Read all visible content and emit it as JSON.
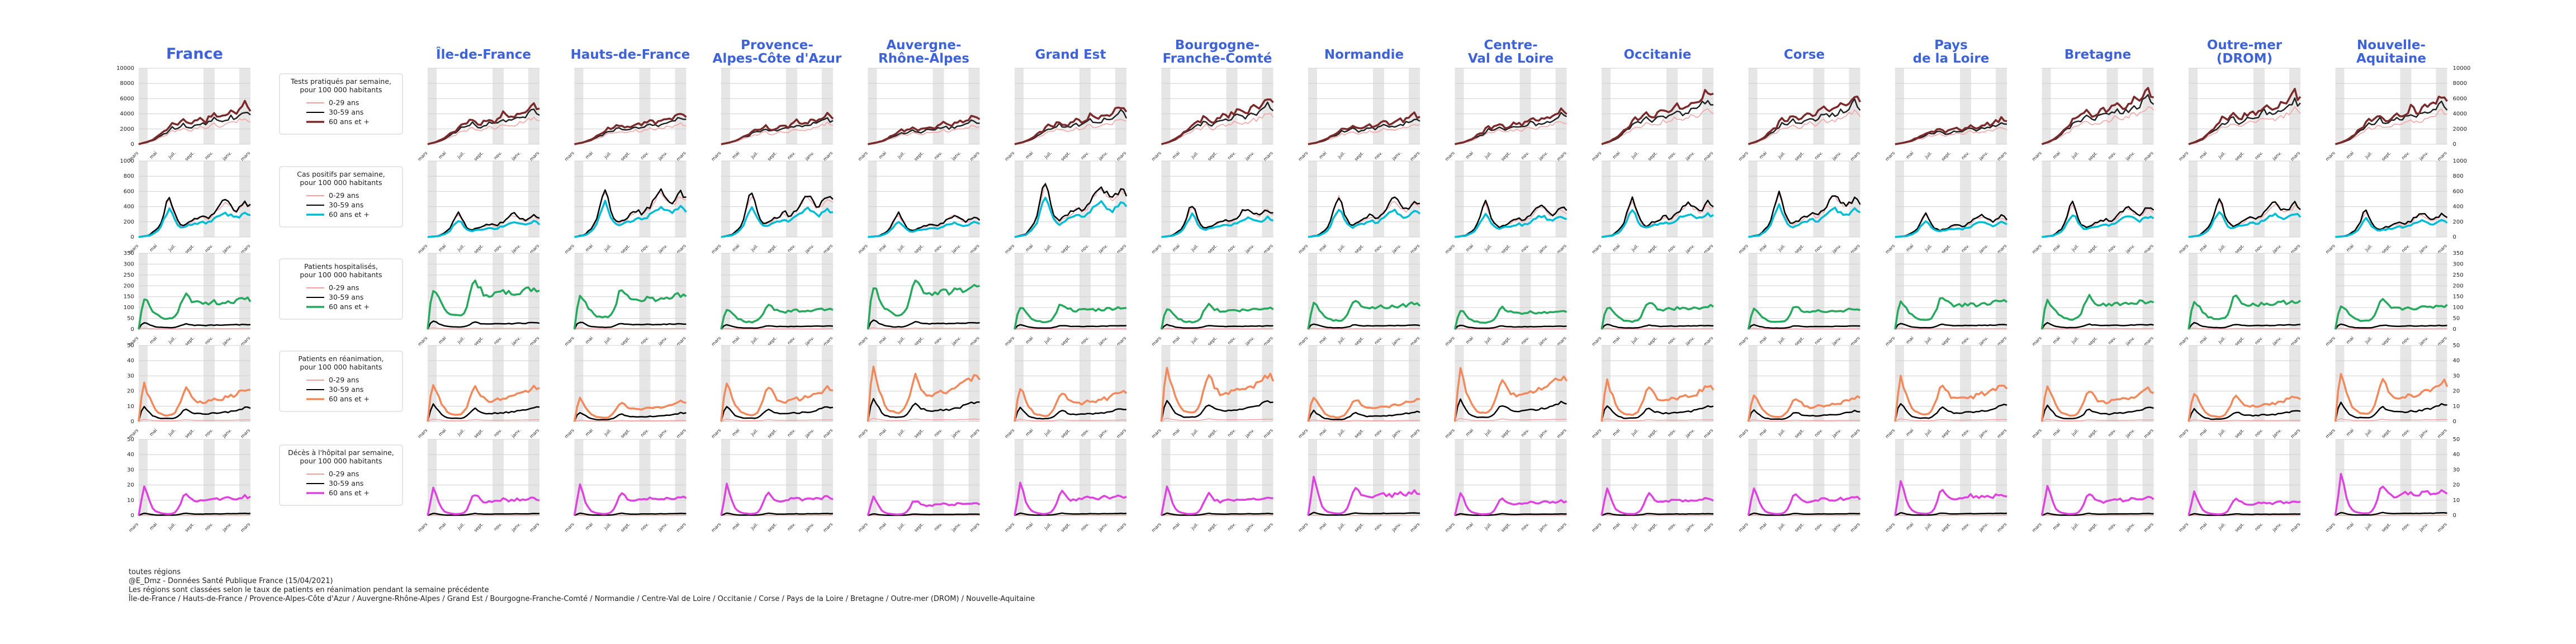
{
  "chart_data": {
    "type": "line",
    "title": "",
    "row_titles": [
      "Tests pratiqués par semaine,\npour 100 000 habitants",
      "Cas positifs par semaine,\npour 100 000 habitants",
      "Patients hospitalisés,\npour 100 000 habitants",
      "Patients en réanimation,\npour 100 000 habitants",
      "Décès à l'hôpital par semaine,\npour 100 000 habitants"
    ],
    "legend_entries": [
      "0-29 ans",
      "30-59 ans",
      "60 ans et +"
    ],
    "regions": [
      "France",
      "Île-de-France",
      "Hauts-de-France",
      "Provence-\nAlpes-Côte d'Azur",
      "Auvergne-\nRhône-Alpes",
      "Grand Est",
      "Bourgogne-\nFranche-Comté",
      "Normandie",
      "Centre-\nVal de Loire",
      "Occitanie",
      "Corse",
      "Pays\nde la Loire",
      "Bretagne",
      "Outre-mer\n(DROM)",
      "Nouvelle-\nAquitaine"
    ],
    "x_ticks": [
      "mars",
      "mai",
      "juil.",
      "sept.",
      "nov.",
      "janv.",
      "mars"
    ],
    "y_ticks": [
      [
        "0",
        "2000",
        "4000",
        "6000",
        "8000",
        "10000"
      ],
      [
        "0",
        "200",
        "400",
        "600",
        "800",
        "1000"
      ],
      [
        "0",
        "50",
        "100",
        "150",
        "200",
        "250",
        "300",
        "350"
      ],
      [
        "0",
        "10",
        "20",
        "30",
        "40",
        "50"
      ],
      [
        "0",
        "10",
        "20",
        "30",
        "40",
        "50"
      ]
    ],
    "ylim": [
      [
        0,
        10000
      ],
      [
        0,
        1000
      ],
      [
        0,
        350
      ],
      [
        0,
        50
      ],
      [
        0,
        50
      ]
    ],
    "row_colors": [
      "#222222",
      "#00bcd4",
      "#27a85f",
      "#f08a5d",
      "#dd44dd"
    ],
    "gray_shade": true,
    "grid": true,
    "legend_placement": "left column",
    "country_series": {
      "x": [
        0,
        10,
        20,
        30,
        40,
        50,
        60,
        70,
        80,
        90,
        100,
        110,
        120,
        130,
        140,
        150,
        160,
        170,
        180,
        190,
        200,
        210,
        220,
        230,
        240,
        250,
        260,
        270,
        280,
        290,
        300,
        310,
        320,
        330,
        340,
        350,
        360,
        370,
        380,
        390,
        400
      ],
      "tests_60": [
        0,
        100,
        200,
        300,
        450,
        600,
        800,
        1100,
        1400,
        1600,
        1800,
        2300,
        2600,
        2500,
        2600,
        3000,
        3200,
        2800,
        2600,
        2700,
        2900,
        3100,
        3300,
        3200,
        3000,
        3400,
        3600,
        4000,
        3700,
        3500,
        3600,
        3800,
        4000,
        4200,
        4100,
        4300,
        4700,
        5000,
        5300,
        4800,
        4600
      ],
      "tests_30": [
        0,
        80,
        150,
        250,
        400,
        520,
        700,
        950,
        1200,
        1400,
        1500,
        1900,
        2200,
        2100,
        2200,
        2500,
        2700,
        2400,
        2200,
        2300,
        2500,
        2600,
        2800,
        2700,
        2600,
        2900,
        3100,
        3300,
        3100,
        3000,
        3100,
        3200,
        3400,
        3600,
        3500,
        3700,
        4000,
        4200,
        4500,
        4100,
        3900
      ],
      "tests_0": [
        0,
        60,
        120,
        200,
        320,
        420,
        560,
        760,
        960,
        1120,
        1200,
        1520,
        1760,
        1680,
        1760,
        2000,
        2160,
        1920,
        1760,
        1840,
        2000,
        2080,
        2240,
        2160,
        2080,
        2320,
        2480,
        2640,
        2480,
        2400,
        2480,
        2560,
        2720,
        2880,
        2800,
        2960,
        3200,
        3360,
        3600,
        3280,
        3120
      ],
      "cases_60": [
        0,
        5,
        10,
        15,
        20,
        40,
        60,
        90,
        140,
        220,
        300,
        360,
        300,
        220,
        160,
        130,
        120,
        140,
        150,
        160,
        170,
        180,
        190,
        200,
        180,
        190,
        210,
        230,
        260,
        290,
        310,
        320,
        300,
        280,
        260,
        250,
        270,
        300,
        320,
        300,
        280
      ],
      "cases_30": [
        0,
        8,
        15,
        20,
        30,
        60,
        90,
        130,
        200,
        320,
        450,
        520,
        430,
        300,
        210,
        170,
        150,
        170,
        190,
        210,
        230,
        250,
        270,
        280,
        250,
        260,
        290,
        320,
        370,
        420,
        460,
        480,
        440,
        400,
        370,
        350,
        380,
        420,
        460,
        430,
        400
      ],
      "cases_0": [
        0,
        7,
        14,
        18,
        26,
        55,
        85,
        120,
        185,
        300,
        420,
        490,
        400,
        280,
        190,
        155,
        140,
        160,
        175,
        195,
        215,
        235,
        255,
        265,
        235,
        245,
        275,
        305,
        350,
        400,
        440,
        460,
        420,
        380,
        350,
        330,
        360,
        400,
        440,
        410,
        380
      ],
      "hosp_60": [
        0,
        90,
        135,
        125,
        105,
        85,
        72,
        62,
        55,
        50,
        48,
        48,
        50,
        58,
        75,
        110,
        150,
        165,
        150,
        135,
        125,
        120,
        118,
        118,
        120,
        122,
        124,
        125,
        124,
        123,
        124,
        125,
        126,
        128,
        130,
        132,
        134,
        136,
        138,
        137,
        135
      ],
      "hosp_30": [
        0,
        22,
        30,
        26,
        20,
        15,
        12,
        10,
        9,
        8,
        8,
        8,
        8,
        9,
        12,
        16,
        22,
        24,
        22,
        20,
        19,
        18,
        18,
        18,
        18,
        19,
        19,
        19,
        19,
        19,
        19,
        20,
        20,
        20,
        21,
        21,
        21,
        22,
        22,
        22,
        22
      ],
      "hosp_0": [
        0,
        4,
        5,
        4,
        3,
        3,
        2,
        2,
        2,
        2,
        2,
        2,
        2,
        2,
        2,
        3,
        3,
        4,
        3,
        3,
        3,
        3,
        3,
        3,
        3,
        3,
        3,
        3,
        3,
        3,
        3,
        3,
        3,
        3,
        3,
        3,
        3,
        3,
        3,
        3,
        3
      ],
      "rea_60": [
        0,
        16,
        24,
        20,
        15,
        11,
        8,
        6,
        5,
        4.5,
        4,
        4,
        4.5,
        6,
        9,
        13,
        18,
        21,
        19,
        16,
        14,
        13,
        12.5,
        12.5,
        13,
        13.5,
        14,
        14,
        14,
        14.5,
        15,
        15.5,
        16,
        16.5,
        17,
        18,
        19,
        20,
        21,
        21,
        20
      ],
      "rea_30": [
        0,
        7,
        10,
        8,
        6,
        4,
        3,
        2.5,
        2,
        2,
        2,
        2,
        2,
        2.5,
        3.5,
        5,
        7,
        8,
        7,
        6,
        5.5,
        5,
        5,
        5,
        5,
        5.2,
        5.4,
        5.5,
        5.5,
        5.6,
        5.8,
        6,
        6.2,
        6.5,
        7,
        7.5,
        8,
        8.5,
        9,
        9,
        8.8
      ],
      "rea_0": [
        0,
        1,
        1.5,
        1.2,
        1,
        0.8,
        0.6,
        0.5,
        0.5,
        0.5,
        0.5,
        0.5,
        0.5,
        0.5,
        0.6,
        0.8,
        1,
        1.2,
        1,
        0.9,
        0.8,
        0.8,
        0.8,
        0.8,
        0.8,
        0.8,
        0.8,
        0.8,
        0.8,
        0.8,
        0.8,
        0.8,
        0.9,
        0.9,
        0.9,
        1,
        1,
        1,
        1.1,
        1.1,
        1
      ],
      "dec_60": [
        0,
        10,
        20,
        15,
        9,
        5,
        3,
        2,
        1.5,
        1.2,
        1,
        1,
        1.2,
        2,
        4,
        8,
        13,
        15,
        13,
        11,
        10,
        9.5,
        9.5,
        10,
        10.5,
        11,
        11,
        11.5,
        11,
        10.5,
        10.5,
        11,
        11.5,
        11.5,
        11,
        11,
        11.5,
        12,
        12.5,
        12,
        11.5
      ],
      "dec_30": [
        0,
        0.8,
        1.5,
        1.2,
        0.8,
        0.5,
        0.3,
        0.2,
        0.2,
        0.2,
        0.2,
        0.2,
        0.2,
        0.3,
        0.5,
        0.8,
        1.2,
        1.4,
        1.2,
        1,
        0.9,
        0.9,
        0.9,
        0.9,
        1,
        1,
        1,
        1.1,
        1,
        1,
        1,
        1.1,
        1.1,
        1.1,
        1.1,
        1.1,
        1.2,
        1.2,
        1.3,
        1.2,
        1.2
      ],
      "dec_0": [
        0,
        0.05,
        0.1,
        0.08,
        0.05,
        0.04,
        0.03,
        0.02,
        0.02,
        0.02,
        0.02,
        0.02,
        0.02,
        0.03,
        0.04,
        0.06,
        0.08,
        0.09,
        0.08,
        0.07,
        0.06,
        0.06,
        0.06,
        0.06,
        0.06,
        0.06,
        0.06,
        0.06,
        0.06,
        0.06,
        0.06,
        0.06,
        0.06,
        0.06,
        0.06,
        0.06,
        0.07,
        0.07,
        0.07,
        0.07,
        0.07
      ]
    }
  },
  "footer": {
    "line1": "toutes régions",
    "line2": "@E_Dmz - Données Santé Publique France (15/04/2021)",
    "line3": "Les régions sont classées selon le taux de patients en réanimation pendant la semaine précédente",
    "line4": "Île-de-France / Hauts-de-France / Provence-Alpes-Côte d'Azur / Auvergne-Rhône-Alpes / Grand Est / Bourgogne-Franche-Comté / Normandie / Centre-Val de Loire / Occitanie / Corse / Pays de la Loire / Bretagne / Outre-mer (DROM) / Nouvelle-Aquitaine"
  }
}
